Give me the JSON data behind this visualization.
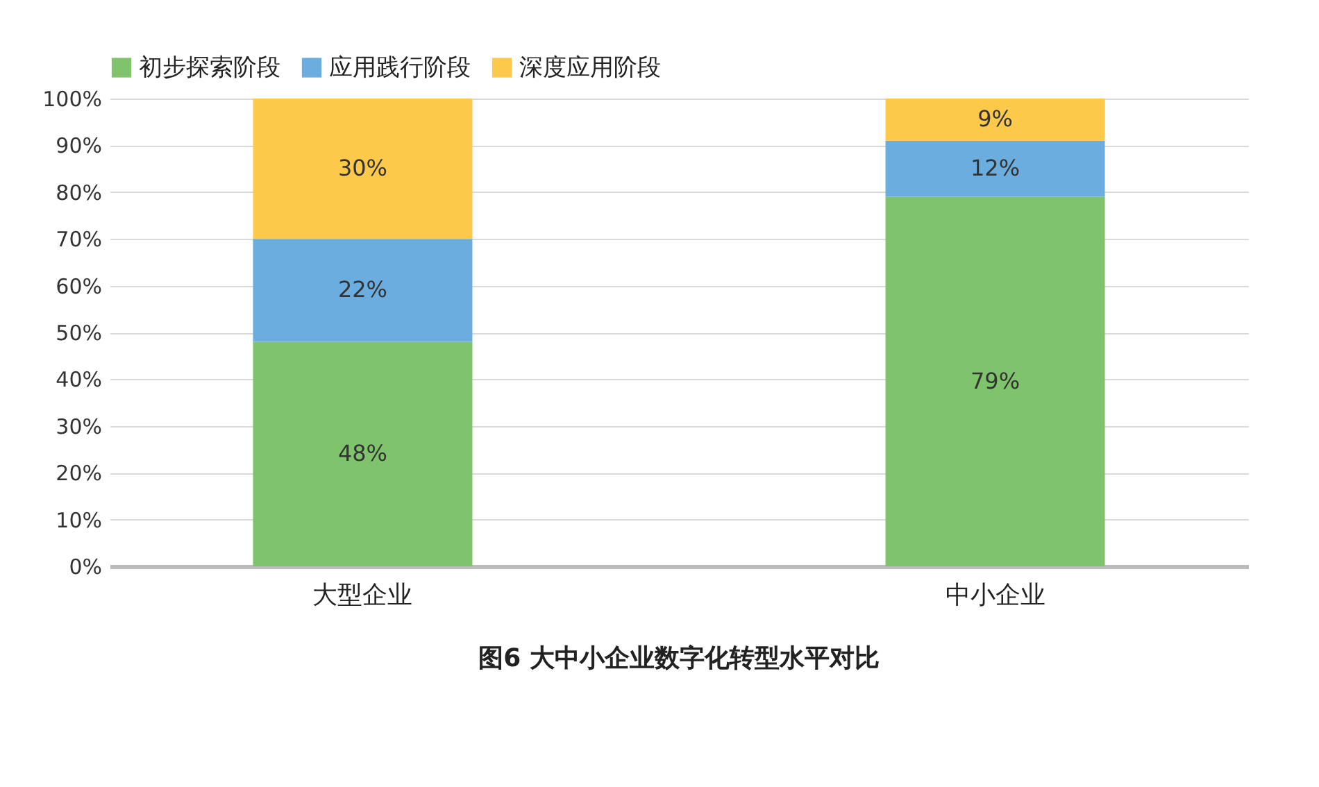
{
  "chart_data": {
    "type": "bar",
    "stacked": true,
    "title": "图6 大中小企业数字化转型水平对比",
    "categories": [
      "大型企业",
      "中小企业"
    ],
    "series": [
      {
        "name": "初步探索阶段",
        "color": "#7fc46c",
        "values": [
          48,
          79
        ],
        "value_labels": [
          "48%",
          "79%"
        ]
      },
      {
        "name": "应用践行阶段",
        "color": "#6badde",
        "values": [
          22,
          12
        ],
        "value_labels": [
          "22%",
          "12%"
        ]
      },
      {
        "name": "深度应用阶段",
        "color": "#fdc94b",
        "values": [
          30,
          9
        ],
        "value_labels": [
          "30%",
          "9%"
        ]
      }
    ],
    "ylim": [
      0,
      100
    ],
    "yticks": [
      {
        "value": 0,
        "label": "0%"
      },
      {
        "value": 10,
        "label": "10%"
      },
      {
        "value": 20,
        "label": "20%"
      },
      {
        "value": 30,
        "label": "30%"
      },
      {
        "value": 40,
        "label": "40%"
      },
      {
        "value": 50,
        "label": "50%"
      },
      {
        "value": 60,
        "label": "60%"
      },
      {
        "value": 70,
        "label": "70%"
      },
      {
        "value": 80,
        "label": "80%"
      },
      {
        "value": 90,
        "label": "90%"
      },
      {
        "value": 100,
        "label": "100%"
      }
    ],
    "grid": "y",
    "legend": "top"
  }
}
